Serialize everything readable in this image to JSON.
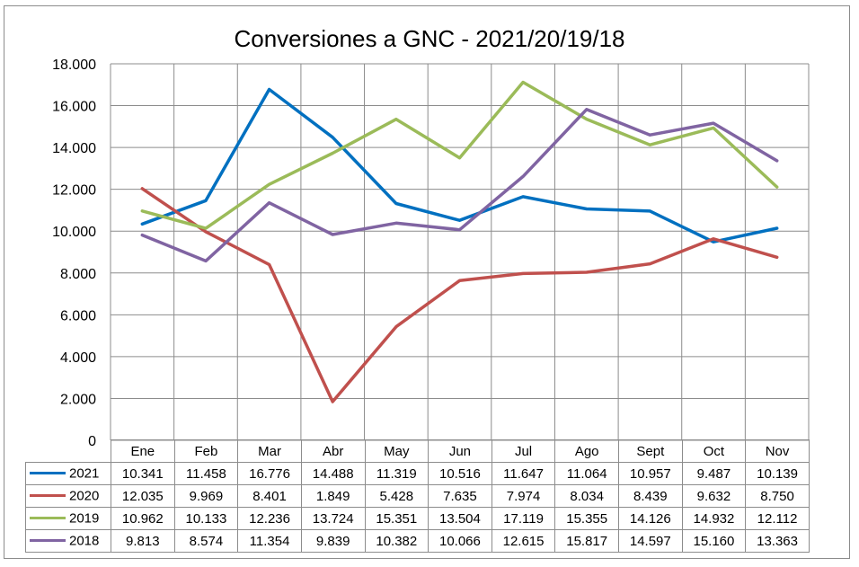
{
  "chart_data": {
    "type": "line",
    "title": "Conversiones  a GNC - 2021/20/19/18",
    "xlabel": "",
    "ylabel": "",
    "categories": [
      "Ene",
      "Feb",
      "Mar",
      "Abr",
      "May",
      "Jun",
      "Jul",
      "Ago",
      "Sept",
      "Oct",
      "Nov"
    ],
    "ylim": [
      0,
      18000
    ],
    "yticks": [
      0,
      2000,
      4000,
      6000,
      8000,
      10000,
      12000,
      14000,
      16000,
      18000
    ],
    "ytick_labels": [
      "0",
      "2.000",
      "4.000",
      "6.000",
      "8.000",
      "10.000",
      "12.000",
      "14.000",
      "16.000",
      "18.000"
    ],
    "grid": true,
    "legend_placement": "data-table-bottom",
    "series": [
      {
        "name": "2021",
        "color": "#0070c0",
        "values": [
          10341,
          11458,
          16776,
          14488,
          11319,
          10516,
          11647,
          11064,
          10957,
          9487,
          10139
        ],
        "labels": [
          "10.341",
          "11.458",
          "16.776",
          "14.488",
          "11.319",
          "10.516",
          "11.647",
          "11.064",
          "10.957",
          "9.487",
          "10.139"
        ]
      },
      {
        "name": "2020",
        "color": "#c0504d",
        "values": [
          12035,
          9969,
          8401,
          1849,
          5428,
          7635,
          7974,
          8034,
          8439,
          9632,
          8750
        ],
        "labels": [
          "12.035",
          "9.969",
          "8.401",
          "1.849",
          "5.428",
          "7.635",
          "7.974",
          "8.034",
          "8.439",
          "9.632",
          "8.750"
        ]
      },
      {
        "name": "2019",
        "color": "#9bbb59",
        "values": [
          10962,
          10133,
          12236,
          13724,
          15351,
          13504,
          17119,
          15355,
          14126,
          14932,
          12112
        ],
        "labels": [
          "10.962",
          "10.133",
          "12.236",
          "13.724",
          "15.351",
          "13.504",
          "17.119",
          "15.355",
          "14.126",
          "14.932",
          "12.112"
        ]
      },
      {
        "name": "2018",
        "color": "#8064a2",
        "values": [
          9813,
          8574,
          11354,
          9839,
          10382,
          10066,
          12615,
          15817,
          14597,
          15160,
          13363
        ],
        "labels": [
          "9.813",
          "8.574",
          "11.354",
          "9.839",
          "10.382",
          "10.066",
          "12.615",
          "15.817",
          "14.597",
          "15.160",
          "13.363"
        ]
      }
    ]
  }
}
